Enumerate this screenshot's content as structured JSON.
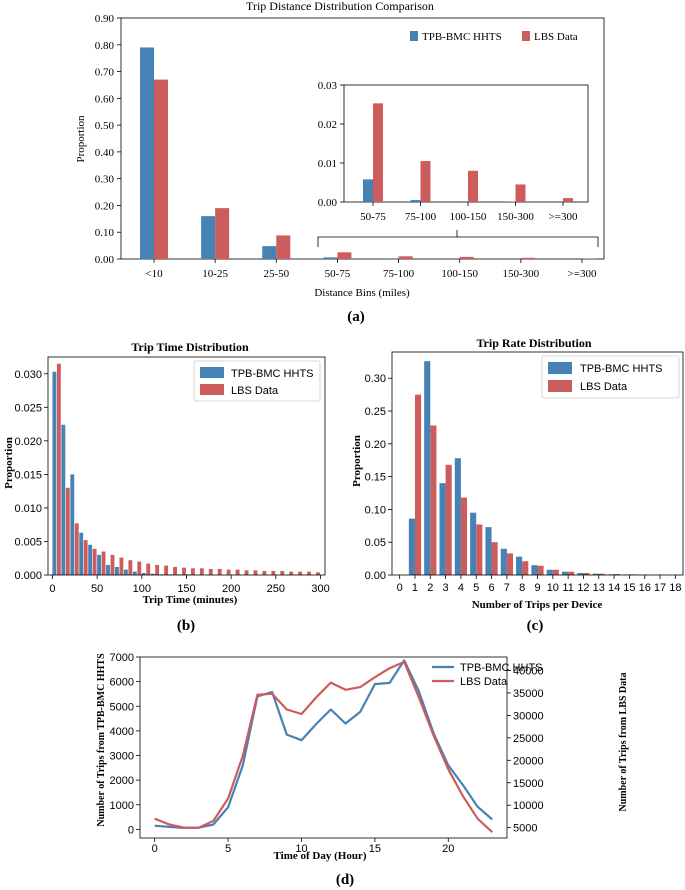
{
  "colors": {
    "blue": "#4682b4",
    "red": "#cd5c5c"
  },
  "panel_labels": [
    "(a)",
    "(b)",
    "(c)",
    "(d)"
  ],
  "chart_data": [
    {
      "id": "a",
      "type": "bar",
      "title": "Trip Distance Distribution Comparison",
      "xlabel": "Distance Bins (miles)",
      "ylabel": "Proportion",
      "categories": [
        "<10",
        "10-25",
        "25-50",
        "50-75",
        "75-100",
        "100-150",
        "150-300",
        ">=300"
      ],
      "ylim": [
        0,
        0.9
      ],
      "yticks": [
        "0.00",
        "0.10",
        "0.20",
        "0.30",
        "0.40",
        "0.50",
        "0.60",
        "0.70",
        "0.80",
        "0.90"
      ],
      "series": [
        {
          "name": "TPB-BMC HHTS",
          "values": [
            0.79,
            0.16,
            0.048,
            0.006,
            0.0005,
            0.0002,
            0.0001,
            0.0
          ]
        },
        {
          "name": "LBS Data",
          "values": [
            0.67,
            0.19,
            0.088,
            0.025,
            0.01,
            0.008,
            0.0045,
            0.001
          ]
        }
      ],
      "inset": {
        "categories": [
          "50-75",
          "75-100",
          "100-150",
          "150-300",
          ">=300"
        ],
        "ylim": [
          0,
          0.03
        ],
        "yticks": [
          "0.00",
          "0.01",
          "0.02",
          "0.03"
        ],
        "series": [
          {
            "name": "TPB-BMC HHTS",
            "values": [
              0.0058,
              0.0005,
              0.0002,
              0.0001,
              0.0
            ]
          },
          {
            "name": "LBS Data",
            "values": [
              0.0253,
              0.0105,
              0.008,
              0.0045,
              0.001
            ]
          }
        ]
      }
    },
    {
      "id": "b",
      "type": "bar",
      "title": "Trip Time Distribution",
      "xlabel": "Trip Time (minutes)",
      "ylabel": "Proportion",
      "xlim": [
        -5,
        305
      ],
      "xticks": [
        0,
        50,
        100,
        150,
        200,
        250,
        300
      ],
      "ylim": [
        0,
        0.0325
      ],
      "yticks": [
        "0.000",
        "0.005",
        "0.010",
        "0.015",
        "0.020",
        "0.025",
        "0.030"
      ],
      "x": [
        5,
        15,
        25,
        35,
        45,
        55,
        65,
        75,
        85,
        95,
        105,
        115,
        125,
        135,
        145,
        155,
        165,
        175,
        185,
        195,
        205,
        215,
        225,
        235,
        245,
        255,
        265,
        275,
        285,
        295
      ],
      "series": [
        {
          "name": "TPB-BMC HHTS",
          "values": [
            0.0303,
            0.0224,
            0.015,
            0.0063,
            0.0045,
            0.003,
            0.0015,
            0.0012,
            0.0008,
            0.0005,
            0.0003,
            0.0002,
            0.0001,
            0.0001,
            0.0001,
            0.0001,
            0.0,
            0.0,
            0.0,
            0.0,
            0.0,
            0.0,
            0.0,
            0.0,
            0.0,
            0.0,
            0.0,
            0.0,
            0.0,
            0.0
          ]
        },
        {
          "name": "LBS Data",
          "values": [
            0.0315,
            0.013,
            0.0077,
            0.0052,
            0.0039,
            0.0035,
            0.003,
            0.0026,
            0.0022,
            0.002,
            0.0017,
            0.0015,
            0.0014,
            0.0012,
            0.0011,
            0.001,
            0.001,
            0.0009,
            0.0009,
            0.0008,
            0.0008,
            0.0007,
            0.0007,
            0.0006,
            0.0006,
            0.0006,
            0.0005,
            0.0005,
            0.0005,
            0.0004
          ]
        }
      ]
    },
    {
      "id": "c",
      "type": "bar",
      "title": "Trip Rate Distribution",
      "xlabel": "Number of Trips per Device",
      "ylabel": "Proportion",
      "xlim": [
        -0.5,
        18.5
      ],
      "xticks": [
        0,
        1,
        2,
        3,
        4,
        5,
        6,
        7,
        8,
        9,
        10,
        11,
        12,
        13,
        14,
        15,
        16,
        17,
        18
      ],
      "ylim": [
        0,
        0.34
      ],
      "yticks": [
        "0.00",
        "0.05",
        "0.10",
        "0.15",
        "0.20",
        "0.25",
        "0.30"
      ],
      "x": [
        1,
        2,
        3,
        4,
        5,
        6,
        7,
        8,
        9,
        10,
        11,
        12,
        13,
        14,
        15,
        16,
        17,
        18
      ],
      "series": [
        {
          "name": "TPB-BMC HHTS",
          "values": [
            0.086,
            0.326,
            0.14,
            0.178,
            0.095,
            0.073,
            0.04,
            0.028,
            0.015,
            0.008,
            0.005,
            0.003,
            0.002,
            0.001,
            0.0005,
            0.0003,
            0.0002,
            0.0001
          ]
        },
        {
          "name": "LBS Data",
          "values": [
            0.275,
            0.228,
            0.168,
            0.118,
            0.077,
            0.05,
            0.033,
            0.021,
            0.014,
            0.008,
            0.005,
            0.003,
            0.002,
            0.0015,
            0.001,
            0.0007,
            0.0005,
            0.0003
          ]
        }
      ]
    },
    {
      "id": "d",
      "type": "line",
      "title": "",
      "xlabel": "Time of Day (Hour)",
      "ylabel": "Number of Trips from TPB-BMC HHTS",
      "ylabel_right": "Number of Trips from LBS Data",
      "xlim": [
        -1,
        24
      ],
      "xticks": [
        0,
        5,
        10,
        15,
        20
      ],
      "ylim": [
        -350,
        7000
      ],
      "yticks": [
        0,
        1000,
        2000,
        3000,
        4000,
        5000,
        6000,
        7000
      ],
      "ylim_right": [
        2700,
        43000
      ],
      "yticks_right": [
        5000,
        10000,
        15000,
        20000,
        25000,
        30000,
        35000,
        40000
      ],
      "x": [
        0,
        1,
        2,
        3,
        4,
        5,
        6,
        7,
        8,
        9,
        10,
        11,
        12,
        13,
        14,
        15,
        16,
        17,
        18,
        19,
        20,
        21,
        22,
        23
      ],
      "series": [
        {
          "name": "TPB-BMC HHTS",
          "axis": "left",
          "values": [
            150,
            100,
            60,
            70,
            200,
            900,
            2600,
            5400,
            5580,
            3850,
            3620,
            4280,
            4870,
            4300,
            4770,
            5900,
            5950,
            6860,
            5600,
            3900,
            2600,
            1800,
            920,
            400
          ]
        },
        {
          "name": "LBS Data",
          "axis": "right",
          "values": [
            7000,
            5700,
            5000,
            5000,
            6500,
            11500,
            21000,
            34600,
            34800,
            31300,
            30300,
            34000,
            37300,
            35700,
            36300,
            38500,
            40500,
            41900,
            34000,
            25500,
            18000,
            12000,
            7000,
            4000
          ]
        }
      ]
    }
  ]
}
